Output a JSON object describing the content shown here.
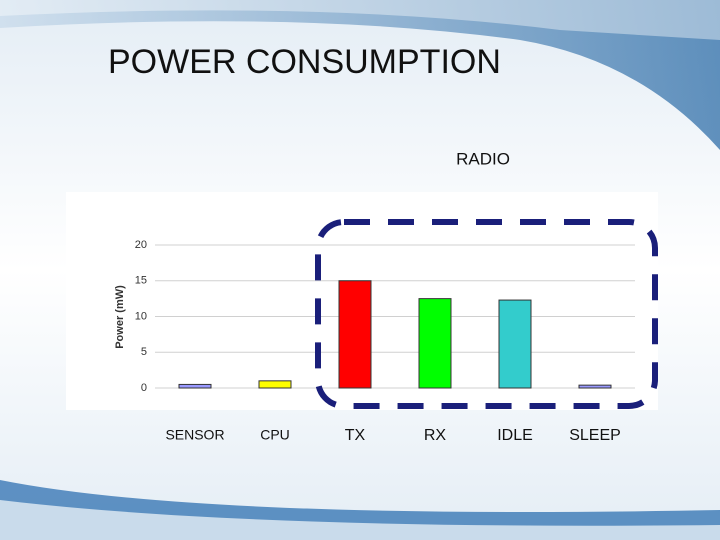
{
  "chart_data": {
    "type": "bar",
    "title": "POWER CONSUMPTION",
    "annotation": "RADIO",
    "y_label": "Power (mW)",
    "categories": [
      "SENSOR",
      "CPU",
      "TX",
      "RX",
      "IDLE",
      "SLEEP"
    ],
    "values": [
      0.5,
      1,
      15,
      12.5,
      12.3,
      0.4
    ],
    "colors": [
      "#9999ff",
      "#ffff00",
      "#ff0000",
      "#00ff00",
      "#33cccc",
      "#9999ff"
    ],
    "ylim": [
      0,
      20
    ],
    "yticks": [
      0,
      5,
      10,
      15,
      20
    ],
    "grid": true
  }
}
